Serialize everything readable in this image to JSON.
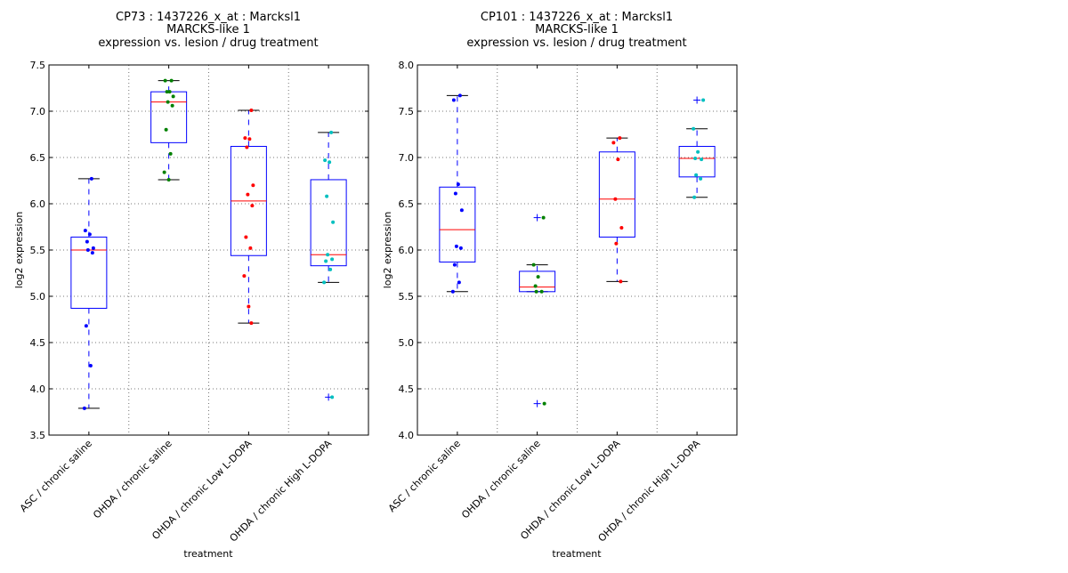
{
  "chart_data": [
    {
      "type": "box",
      "title_lines": [
        "CP73 : 1437226_x_at : Marcksl1",
        "MARCKS-like 1",
        "expression vs. lesion / drug treatment"
      ],
      "xlabel": "treatment",
      "ylabel": "log2 expression",
      "ylim": [
        3.5,
        7.5
      ],
      "yticks": [
        "3.5",
        "4.0",
        "4.5",
        "5.0",
        "5.5",
        "6.0",
        "6.5",
        "7.0",
        "7.5"
      ],
      "grid": true,
      "categories": [
        "ASC / chronic saline",
        "OHDA / chronic saline",
        "OHDA / chronic Low L-DOPA",
        "OHDA / chronic High L-DOPA"
      ],
      "boxes": [
        {
          "whislo": 3.79,
          "q1": 4.87,
          "med": 5.5,
          "q3": 5.64,
          "whishi": 6.27,
          "color": "#0000ff",
          "points": [
            6.27,
            5.71,
            5.67,
            5.59,
            5.52,
            5.5,
            5.47,
            4.68,
            4.25,
            3.79
          ],
          "fliers": []
        },
        {
          "whislo": 6.26,
          "q1": 6.66,
          "med": 7.1,
          "q3": 7.21,
          "whishi": 7.33,
          "color": "#008000",
          "points": [
            7.33,
            7.33,
            7.21,
            7.21,
            7.16,
            7.1,
            7.06,
            6.8,
            6.54,
            6.34,
            6.26
          ],
          "fliers": []
        },
        {
          "whislo": 4.71,
          "q1": 5.44,
          "med": 6.03,
          "q3": 6.62,
          "whishi": 7.01,
          "color": "#ff0000",
          "points": [
            7.01,
            6.71,
            6.7,
            6.61,
            6.2,
            6.1,
            5.98,
            5.64,
            5.52,
            5.22,
            4.89,
            4.71
          ],
          "fliers": []
        },
        {
          "whislo": 5.15,
          "q1": 5.33,
          "med": 5.45,
          "q3": 6.26,
          "whishi": 6.77,
          "color": "#00bfbf",
          "points": [
            6.77,
            6.47,
            6.45,
            6.08,
            5.8,
            5.45,
            5.4,
            5.38,
            5.29,
            5.15,
            3.91
          ],
          "fliers": [
            3.91
          ]
        }
      ]
    },
    {
      "type": "box",
      "title_lines": [
        "CP101 : 1437226_x_at : Marcksl1",
        "MARCKS-like 1",
        "expression vs. lesion / drug treatment"
      ],
      "xlabel": "treatment",
      "ylabel": "log2 expression",
      "ylim": [
        4.0,
        8.0
      ],
      "yticks": [
        "4.0",
        "4.5",
        "5.0",
        "5.5",
        "6.0",
        "6.5",
        "7.0",
        "7.5",
        "8.0"
      ],
      "grid": true,
      "categories": [
        "ASC / chronic saline",
        "OHDA / chronic saline",
        "OHDA / chronic Low L-DOPA",
        "OHDA / chronic High L-DOPA"
      ],
      "boxes": [
        {
          "whislo": 5.55,
          "q1": 5.87,
          "med": 6.22,
          "q3": 6.68,
          "whishi": 7.67,
          "color": "#0000ff",
          "points": [
            7.67,
            7.62,
            6.71,
            6.61,
            6.43,
            6.04,
            6.02,
            5.84,
            5.65,
            5.55
          ],
          "fliers": []
        },
        {
          "whislo": 5.55,
          "q1": 5.55,
          "med": 5.6,
          "q3": 5.77,
          "whishi": 5.84,
          "color": "#008000",
          "points": [
            6.35,
            5.84,
            5.71,
            5.61,
            5.55,
            5.55,
            4.34
          ],
          "fliers": [
            6.35,
            4.34
          ]
        },
        {
          "whislo": 5.66,
          "q1": 6.14,
          "med": 6.55,
          "q3": 7.06,
          "whishi": 7.21,
          "color": "#ff0000",
          "points": [
            7.21,
            7.16,
            6.98,
            6.55,
            6.24,
            6.07,
            5.66
          ],
          "fliers": []
        },
        {
          "whislo": 6.57,
          "q1": 6.79,
          "med": 6.99,
          "q3": 7.12,
          "whishi": 7.31,
          "color": "#00bfbf",
          "points": [
            7.62,
            7.31,
            7.06,
            6.99,
            6.98,
            6.81,
            6.77,
            6.57
          ],
          "fliers": [
            7.62
          ]
        }
      ]
    }
  ]
}
